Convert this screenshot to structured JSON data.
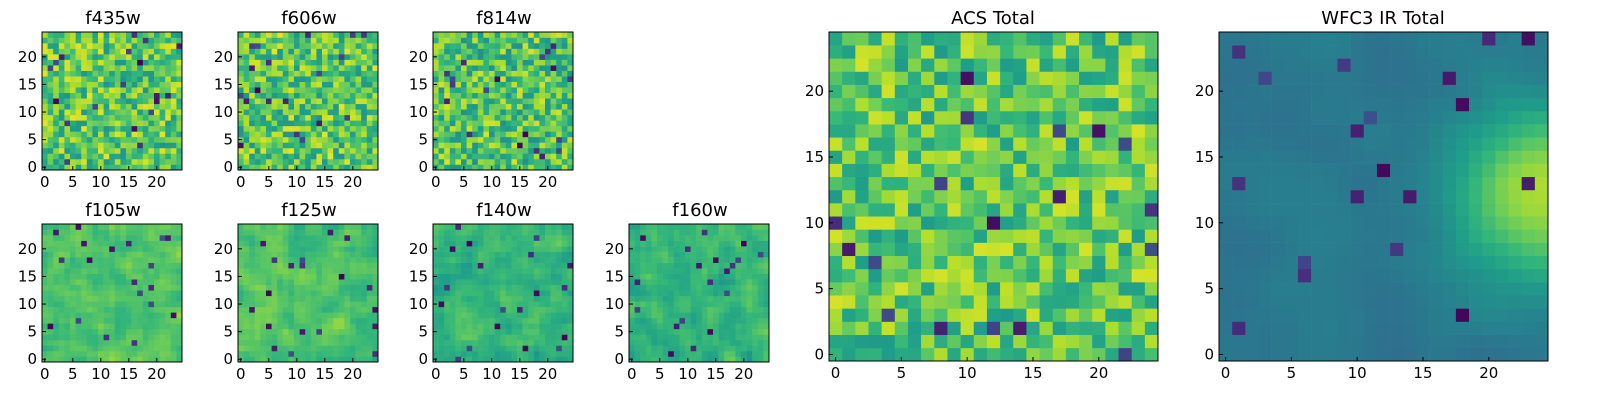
{
  "figure": {
    "panel_titles": [
      "f435w",
      "f606w",
      "f814w",
      "f105w",
      "f125w",
      "f140w",
      "f160w",
      "ACS Total",
      "WFC3 IR Total"
    ]
  },
  "chart_data": [
    {
      "type": "heatmap",
      "title": "f435w",
      "grid": [
        25,
        25
      ],
      "colormap": "viridis",
      "xlim": [
        0,
        24
      ],
      "ylim": [
        0,
        24
      ],
      "xticks": [
        0,
        5,
        10,
        15,
        20
      ],
      "yticks": [
        0,
        5,
        10,
        15,
        20
      ],
      "seed": 11,
      "smooth": 0,
      "base": 0.74,
      "noise": 0.22
    },
    {
      "type": "heatmap",
      "title": "f606w",
      "grid": [
        25,
        25
      ],
      "colormap": "viridis",
      "xlim": [
        0,
        24
      ],
      "ylim": [
        0,
        24
      ],
      "xticks": [
        0,
        5,
        10,
        15,
        20
      ],
      "yticks": [
        0,
        5,
        10,
        15,
        20
      ],
      "seed": 23,
      "smooth": 0,
      "base": 0.74,
      "noise": 0.22
    },
    {
      "type": "heatmap",
      "title": "f814w",
      "grid": [
        25,
        25
      ],
      "colormap": "viridis",
      "xlim": [
        0,
        24
      ],
      "ylim": [
        0,
        24
      ],
      "xticks": [
        0,
        5,
        10,
        15,
        20
      ],
      "yticks": [
        0,
        5,
        10,
        15,
        20
      ],
      "seed": 37,
      "smooth": 0,
      "base": 0.72,
      "noise": 0.22
    },
    {
      "type": "heatmap",
      "title": "f105w",
      "grid": [
        25,
        25
      ],
      "colormap": "viridis",
      "xlim": [
        0,
        24
      ],
      "ylim": [
        0,
        24
      ],
      "xticks": [
        0,
        5,
        10,
        15,
        20
      ],
      "yticks": [
        0,
        5,
        10,
        15,
        20
      ],
      "seed": 41,
      "smooth": 1,
      "base": 0.72,
      "noise": 0.2
    },
    {
      "type": "heatmap",
      "title": "f125w",
      "grid": [
        25,
        25
      ],
      "colormap": "viridis",
      "xlim": [
        0,
        24
      ],
      "ylim": [
        0,
        24
      ],
      "xticks": [
        0,
        5,
        10,
        15,
        20
      ],
      "yticks": [
        0,
        5,
        10,
        15,
        20
      ],
      "seed": 53,
      "smooth": 1,
      "base": 0.72,
      "noise": 0.2
    },
    {
      "type": "heatmap",
      "title": "f140w",
      "grid": [
        25,
        25
      ],
      "colormap": "viridis",
      "xlim": [
        0,
        24
      ],
      "ylim": [
        0,
        24
      ],
      "xticks": [
        0,
        5,
        10,
        15,
        20
      ],
      "yticks": [
        0,
        5,
        10,
        15,
        20
      ],
      "seed": 67,
      "smooth": 1,
      "base": 0.66,
      "noise": 0.22
    },
    {
      "type": "heatmap",
      "title": "f160w",
      "grid": [
        25,
        25
      ],
      "colormap": "viridis",
      "xlim": [
        0,
        24
      ],
      "ylim": [
        0,
        24
      ],
      "xticks": [
        0,
        5,
        10,
        15,
        20
      ],
      "yticks": [
        0,
        5,
        10,
        15,
        20
      ],
      "seed": 79,
      "smooth": 1,
      "base": 0.66,
      "noise": 0.22
    },
    {
      "type": "heatmap",
      "title": "ACS Total",
      "grid": [
        25,
        25
      ],
      "colormap": "viridis",
      "xlim": [
        0,
        24
      ],
      "ylim": [
        0,
        24
      ],
      "xticks": [
        0,
        5,
        10,
        15,
        20
      ],
      "yticks": [
        0,
        5,
        10,
        15,
        20
      ],
      "seed": 97,
      "smooth": 0,
      "base": 0.74,
      "noise": 0.2
    },
    {
      "type": "heatmap",
      "title": "WFC3 IR Total",
      "grid": [
        25,
        25
      ],
      "colormap": "viridis",
      "xlim": [
        0,
        24
      ],
      "ylim": [
        0,
        24
      ],
      "xticks": [
        0,
        5,
        10,
        15,
        20
      ],
      "yticks": [
        0,
        5,
        10,
        15,
        20
      ],
      "seed": 101,
      "smooth": 2,
      "base": 0.4,
      "noise": 0.1,
      "gradient": 0.5
    }
  ]
}
